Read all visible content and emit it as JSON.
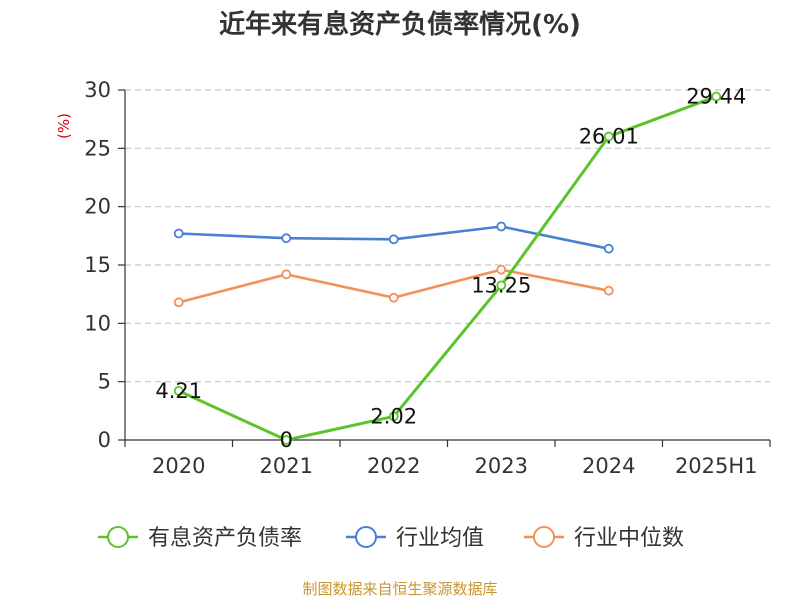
{
  "chart_data": {
    "type": "line",
    "title": "近年来有息资产负债率情况(%)",
    "ylabel": "(%)",
    "categories": [
      "2020",
      "2021",
      "2022",
      "2023",
      "2024",
      "2025H1"
    ],
    "ylim": [
      0,
      30
    ],
    "yticks": [
      0,
      5,
      10,
      15,
      20,
      25,
      30
    ],
    "grid": true,
    "legend_position": "bottom",
    "series": [
      {
        "name": "有息资产负债率",
        "color": "#5cc42a",
        "values": [
          4.21,
          0,
          2.02,
          13.25,
          26.01,
          29.44
        ],
        "labels": [
          "4.21",
          "0",
          "2.02",
          "13.25",
          "26.01",
          "29.44"
        ]
      },
      {
        "name": "行业均值",
        "color": "#4a7fd6",
        "values": [
          17.7,
          17.3,
          17.2,
          18.3,
          16.4,
          null
        ]
      },
      {
        "name": "行业中位数",
        "color": "#f29158",
        "values": [
          11.8,
          14.2,
          12.2,
          14.6,
          12.8,
          null
        ]
      }
    ]
  },
  "source": "制图数据来自恒生聚源数据库"
}
